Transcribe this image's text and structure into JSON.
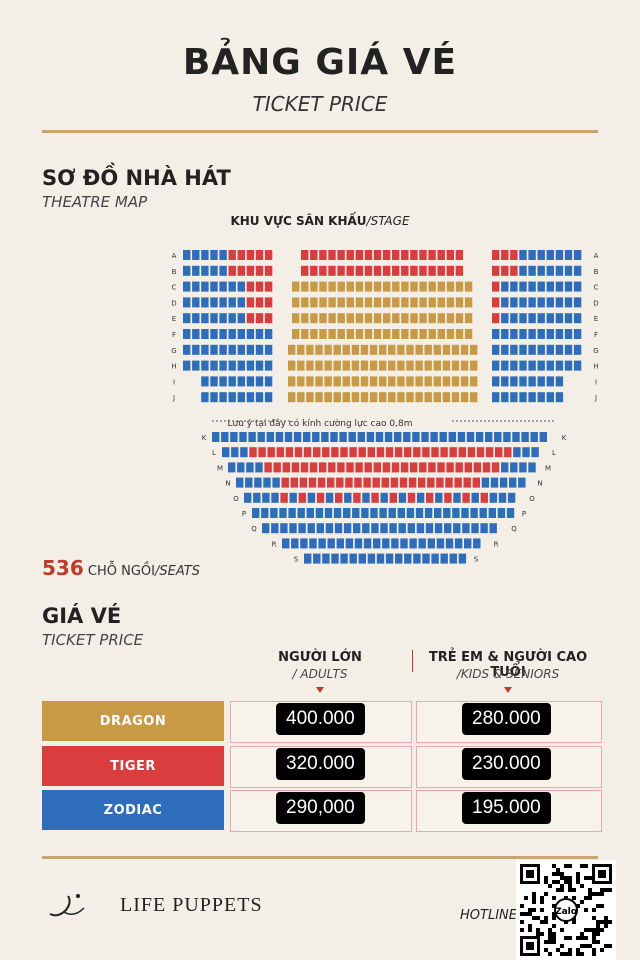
{
  "header": {
    "title": "BẢNG GIÁ VÉ",
    "subtitle": "TICKET PRICE"
  },
  "map": {
    "title": "SƠ ĐỒ NHÀ HÁT",
    "subtitle": "THEATRE MAP",
    "stage_label": "KHU VỰC SÂN KHẤU",
    "stage_label_en": "/STAGE",
    "glass_note": "Lưu ý tại đây có kính cường lực cao 0,8m",
    "rows_upper": [
      "A",
      "B",
      "C",
      "D",
      "E",
      "F",
      "G",
      "H",
      "I",
      "J"
    ],
    "rows_lower": [
      "K",
      "L",
      "M",
      "N",
      "O",
      "P",
      "Q",
      "R",
      "S"
    ],
    "colors": {
      "dragon": "#c99a45",
      "tiger": "#d93d3d",
      "zodiac": "#2e6dbb"
    }
  },
  "seats": {
    "count": "536",
    "label": "CHỖ NGỒI",
    "label_en": "/SEATS"
  },
  "prices": {
    "title": "GIÁ VÉ",
    "subtitle": "TICKET PRICE",
    "col_adult": "NGƯỜI LỚN",
    "col_adult_en": "/ ADULTS",
    "col_kids": "TRẺ EM & NGƯỜI CAO TUỔI",
    "col_kids_en": "/KIDS & SENIORS",
    "tiers": [
      {
        "name": "DRAGON",
        "color": "#c99a45",
        "adult": "400.000",
        "kids": "280.000"
      },
      {
        "name": "TIGER",
        "color": "#d93d3d",
        "adult": "320.000",
        "kids": "230.000"
      },
      {
        "name": "ZODIAC",
        "color": "#2e6dbb",
        "adult": "290,000",
        "kids": "195.000"
      }
    ]
  },
  "footer": {
    "logo_brand": "LIFE PUPPETS",
    "hotline_label": "HOTLINE:",
    "qr_badge": "Zalo"
  }
}
